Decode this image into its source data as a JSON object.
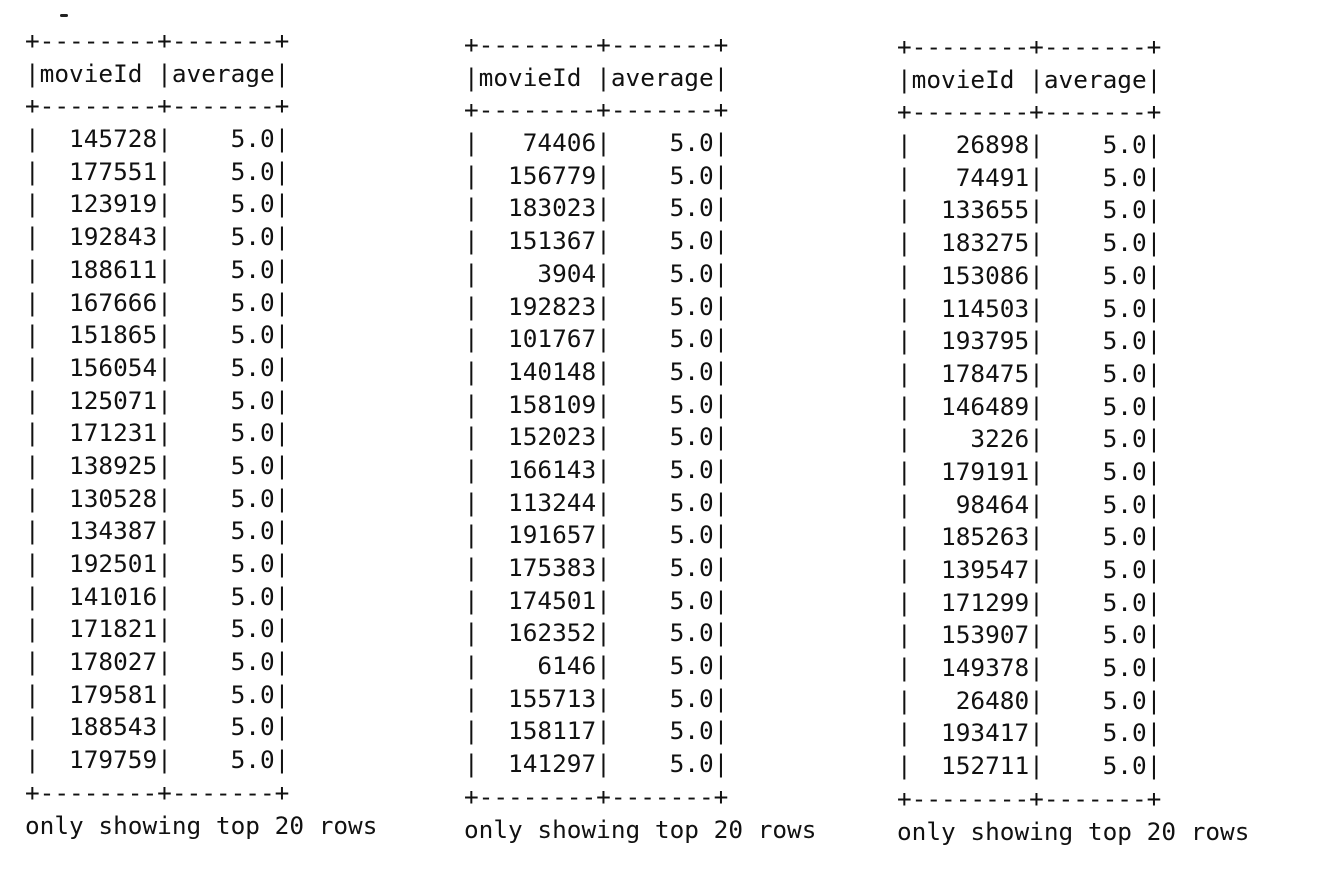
{
  "tables": [
    {
      "border": "+--------+-------+",
      "header": [
        "movieId",
        "average"
      ],
      "rows": [
        [
          "145728",
          "5.0"
        ],
        [
          "177551",
          "5.0"
        ],
        [
          "123919",
          "5.0"
        ],
        [
          "192843",
          "5.0"
        ],
        [
          "188611",
          "5.0"
        ],
        [
          "167666",
          "5.0"
        ],
        [
          "151865",
          "5.0"
        ],
        [
          "156054",
          "5.0"
        ],
        [
          "125071",
          "5.0"
        ],
        [
          "171231",
          "5.0"
        ],
        [
          "138925",
          "5.0"
        ],
        [
          "130528",
          "5.0"
        ],
        [
          "134387",
          "5.0"
        ],
        [
          "192501",
          "5.0"
        ],
        [
          "141016",
          "5.0"
        ],
        [
          "171821",
          "5.0"
        ],
        [
          "178027",
          "5.0"
        ],
        [
          "179581",
          "5.0"
        ],
        [
          "188543",
          "5.0"
        ],
        [
          "179759",
          "5.0"
        ]
      ],
      "footer": "only showing top 20 rows"
    },
    {
      "border": "+--------+-------+",
      "header": [
        "movieId",
        "average"
      ],
      "rows": [
        [
          "74406",
          "5.0"
        ],
        [
          "156779",
          "5.0"
        ],
        [
          "183023",
          "5.0"
        ],
        [
          "151367",
          "5.0"
        ],
        [
          "3904",
          "5.0"
        ],
        [
          "192823",
          "5.0"
        ],
        [
          "101767",
          "5.0"
        ],
        [
          "140148",
          "5.0"
        ],
        [
          "158109",
          "5.0"
        ],
        [
          "152023",
          "5.0"
        ],
        [
          "166143",
          "5.0"
        ],
        [
          "113244",
          "5.0"
        ],
        [
          "191657",
          "5.0"
        ],
        [
          "175383",
          "5.0"
        ],
        [
          "174501",
          "5.0"
        ],
        [
          "162352",
          "5.0"
        ],
        [
          "6146",
          "5.0"
        ],
        [
          "155713",
          "5.0"
        ],
        [
          "158117",
          "5.0"
        ],
        [
          "141297",
          "5.0"
        ]
      ],
      "footer": "only showing top 20 rows"
    },
    {
      "border": "+--------+-------+",
      "header": [
        "movieId",
        "average"
      ],
      "rows": [
        [
          "26898",
          "5.0"
        ],
        [
          "74491",
          "5.0"
        ],
        [
          "133655",
          "5.0"
        ],
        [
          "183275",
          "5.0"
        ],
        [
          "153086",
          "5.0"
        ],
        [
          "114503",
          "5.0"
        ],
        [
          "193795",
          "5.0"
        ],
        [
          "178475",
          "5.0"
        ],
        [
          "146489",
          "5.0"
        ],
        [
          "3226",
          "5.0"
        ],
        [
          "179191",
          "5.0"
        ],
        [
          "98464",
          "5.0"
        ],
        [
          "185263",
          "5.0"
        ],
        [
          "139547",
          "5.0"
        ],
        [
          "171299",
          "5.0"
        ],
        [
          "153907",
          "5.0"
        ],
        [
          "149378",
          "5.0"
        ],
        [
          "26480",
          "5.0"
        ],
        [
          "193417",
          "5.0"
        ],
        [
          "152711",
          "5.0"
        ]
      ],
      "footer": "only showing top 20 rows"
    }
  ]
}
